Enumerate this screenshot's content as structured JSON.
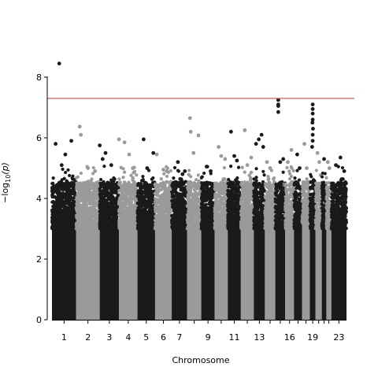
{
  "chart_data": {
    "type": "scatter",
    "title": "",
    "xlabel": "Chromosome",
    "ylabel_parts": {
      "prefix": "−log",
      "subscript": "10",
      "suffix": "(p)"
    },
    "ylim": [
      0,
      8.9
    ],
    "yticks": [
      0,
      2,
      4,
      6,
      8
    ],
    "grid": false,
    "significance_line": {
      "y": 7.3,
      "color": "#c44e52"
    },
    "colors": {
      "odd": "#1a1a1a",
      "even": "#9a9a9a"
    },
    "xtick_labels": [
      "1",
      "2",
      "3",
      "4",
      "5",
      "6",
      "7",
      "9",
      "11",
      "13",
      "16",
      "19",
      "23"
    ],
    "chromosomes": [
      {
        "label": "1",
        "rel_len": 2.49,
        "outliers": [
          [
            0.3,
            8.45
          ],
          [
            0.15,
            5.8
          ],
          [
            0.55,
            5.45
          ],
          [
            0.8,
            5.9
          ],
          [
            0.4,
            5.1
          ]
        ]
      },
      {
        "label": "2",
        "rel_len": 2.42,
        "outliers": [
          [
            0.15,
            6.37
          ],
          [
            0.2,
            6.1
          ],
          [
            0.5,
            5.0
          ],
          [
            0.8,
            4.9
          ]
        ]
      },
      {
        "label": "3",
        "rel_len": 1.98,
        "outliers": [
          [
            0.0,
            5.75
          ],
          [
            0.15,
            5.3
          ],
          [
            0.3,
            5.5
          ],
          [
            0.6,
            5.1
          ]
        ]
      },
      {
        "label": "4",
        "rel_len": 1.9,
        "outliers": [
          [
            0.0,
            5.95
          ],
          [
            0.3,
            5.85
          ],
          [
            0.55,
            5.45
          ],
          [
            0.75,
            5.0
          ]
        ]
      },
      {
        "label": "5",
        "rel_len": 1.81,
        "outliers": [
          [
            0.35,
            5.95
          ],
          [
            0.55,
            5.0
          ],
          [
            0.9,
            5.5
          ]
        ]
      },
      {
        "label": "6",
        "rel_len": 1.71,
        "outliers": [
          [
            0.1,
            5.45
          ],
          [
            0.5,
            4.95
          ],
          [
            0.7,
            4.9
          ]
        ]
      },
      {
        "label": "7",
        "rel_len": 1.59,
        "outliers": [
          [
            0.4,
            5.2
          ],
          [
            0.7,
            4.8
          ],
          [
            0.85,
            4.9
          ]
        ]
      },
      {
        "label": "8",
        "rel_len": 1.45,
        "outliers": [
          [
            0.2,
            6.65
          ],
          [
            0.25,
            6.2
          ],
          [
            0.45,
            5.5
          ],
          [
            0.8,
            6.08
          ]
        ]
      },
      {
        "label": "9",
        "rel_len": 1.38,
        "outliers": [
          [
            0.4,
            5.05
          ],
          [
            0.7,
            4.9
          ]
        ]
      },
      {
        "label": "10",
        "rel_len": 1.34,
        "outliers": [
          [
            0.3,
            5.7
          ],
          [
            0.5,
            5.4
          ],
          [
            0.8,
            5.3
          ]
        ]
      },
      {
        "label": "11",
        "rel_len": 1.35,
        "outliers": [
          [
            0.25,
            6.2
          ],
          [
            0.5,
            5.4
          ],
          [
            0.7,
            5.25
          ]
        ]
      },
      {
        "label": "12",
        "rel_len": 1.33,
        "outliers": [
          [
            0.3,
            6.25
          ],
          [
            0.5,
            5.1
          ],
          [
            0.8,
            5.35
          ]
        ]
      },
      {
        "label": "13",
        "rel_len": 1.14,
        "outliers": [
          [
            0.2,
            5.8
          ],
          [
            0.45,
            5.95
          ],
          [
            0.7,
            6.1
          ],
          [
            0.85,
            5.7
          ]
        ]
      },
      {
        "label": "14",
        "rel_len": 1.07,
        "outliers": [
          [
            0.2,
            5.2
          ],
          [
            0.5,
            5.0
          ]
        ]
      },
      {
        "label": "15",
        "rel_len": 1.02,
        "outliers": [
          [
            0.3,
            7.25
          ],
          [
            0.3,
            7.1
          ],
          [
            0.3,
            7.05
          ],
          [
            0.3,
            6.85
          ],
          [
            0.8,
            5.3
          ],
          [
            0.5,
            5.2
          ]
        ]
      },
      {
        "label": "16",
        "rel_len": 0.9,
        "outliers": [
          [
            0.3,
            5.2
          ],
          [
            0.7,
            5.6
          ]
        ]
      },
      {
        "label": "17",
        "rel_len": 0.83,
        "outliers": [
          [
            0.4,
            5.45
          ],
          [
            0.7,
            5.0
          ]
        ]
      },
      {
        "label": "18",
        "rel_len": 0.8,
        "outliers": [
          [
            0.3,
            5.8
          ],
          [
            0.6,
            5.0
          ]
        ]
      },
      {
        "label": "19",
        "rel_len": 0.59,
        "outliers": [
          [
            0.5,
            7.1
          ],
          [
            0.5,
            6.95
          ],
          [
            0.5,
            6.8
          ],
          [
            0.5,
            6.6
          ],
          [
            0.45,
            6.5
          ],
          [
            0.55,
            6.3
          ],
          [
            0.5,
            6.1
          ],
          [
            0.5,
            5.9
          ],
          [
            0.4,
            5.7
          ]
        ]
      },
      {
        "label": "20",
        "rel_len": 0.64,
        "outliers": [
          [
            0.3,
            5.5
          ],
          [
            0.6,
            5.2
          ]
        ]
      },
      {
        "label": "21",
        "rel_len": 0.47,
        "outliers": [
          [
            0.5,
            5.3
          ]
        ]
      },
      {
        "label": "22",
        "rel_len": 0.51,
        "outliers": [
          [
            0.3,
            5.2
          ],
          [
            0.6,
            5.0
          ]
        ]
      },
      {
        "label": "23",
        "rel_len": 1.56,
        "outliers": [
          [
            0.3,
            5.1
          ],
          [
            0.6,
            5.35
          ],
          [
            0.85,
            4.9
          ]
        ]
      }
    ]
  }
}
